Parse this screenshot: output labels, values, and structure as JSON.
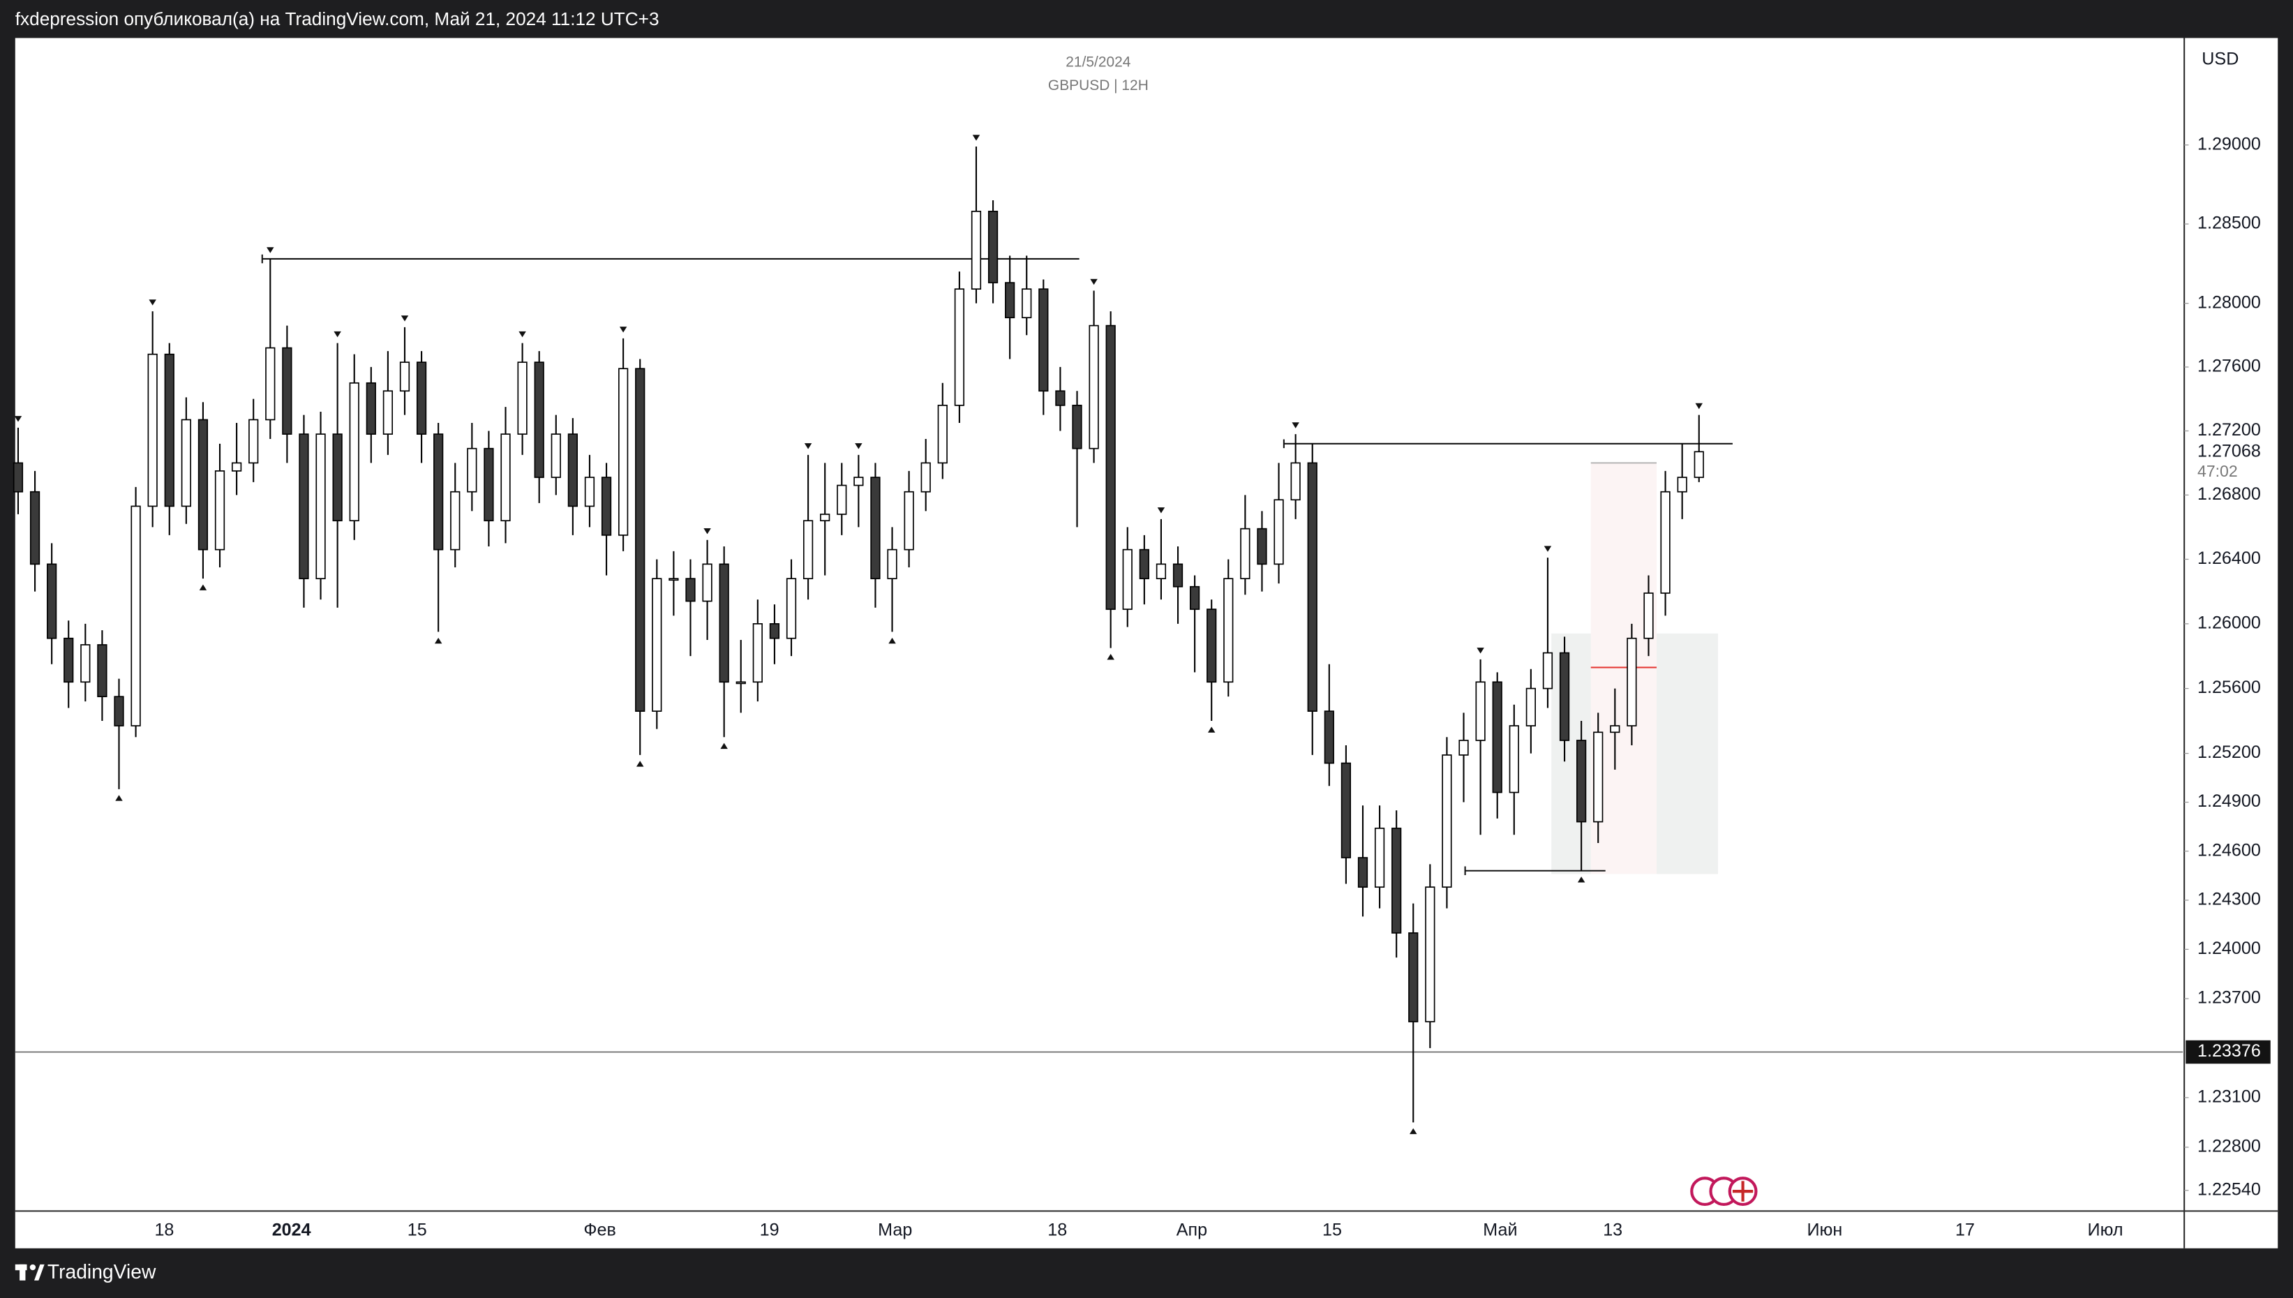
{
  "header": {
    "text": "fxdepression опубликовал(а) на TradingView.com, Май 21, 2024 11:12 UTC+3"
  },
  "footer": {
    "brand": "TradingView"
  },
  "chart_data": {
    "type": "candlestick",
    "title": "21/5/2024",
    "subtitle": "GBPUSD | 12H",
    "currency": "USD",
    "log_scale": true,
    "ylim": [
      1.2242,
      1.2968
    ],
    "yticks": [
      {
        "value": 1.29,
        "label": "1.29000"
      },
      {
        "value": 1.285,
        "label": "1.28500"
      },
      {
        "value": 1.28,
        "label": "1.28000"
      },
      {
        "value": 1.276,
        "label": "1.27600"
      },
      {
        "value": 1.272,
        "label": "1.27200"
      },
      {
        "value": 1.268,
        "label": "1.26800"
      },
      {
        "value": 1.264,
        "label": "1.26400"
      },
      {
        "value": 1.26,
        "label": "1.26000"
      },
      {
        "value": 1.256,
        "label": "1.25600"
      },
      {
        "value": 1.252,
        "label": "1.25200"
      },
      {
        "value": 1.249,
        "label": "1.24900"
      },
      {
        "value": 1.246,
        "label": "1.24600"
      },
      {
        "value": 1.243,
        "label": "1.24300"
      },
      {
        "value": 1.24,
        "label": "1.24000"
      },
      {
        "value": 1.237,
        "label": "1.23700"
      },
      {
        "value": 1.231,
        "label": "1.23100"
      },
      {
        "value": 1.228,
        "label": "1.22800"
      },
      {
        "value": 1.2254,
        "label": "1.22540"
      }
    ],
    "x_labels": [
      "18",
      "2024",
      "15",
      "Фев",
      "19",
      "Мар",
      "18",
      "Апр",
      "15",
      "Май",
      "13",
      "Июн",
      "17",
      "Июл"
    ],
    "up_color": "#ffffff",
    "down_color": "#3a3a3a",
    "wick_color": "#000000",
    "ohlc": [
      [
        1.27,
        1.2722,
        1.2668,
        1.2682
      ],
      [
        1.2682,
        1.2695,
        1.262,
        1.2637
      ],
      [
        1.2637,
        1.265,
        1.2575,
        1.2591
      ],
      [
        1.2591,
        1.2602,
        1.2548,
        1.2564
      ],
      [
        1.2564,
        1.26,
        1.2552,
        1.2587
      ],
      [
        1.2587,
        1.2596,
        1.254,
        1.2555
      ],
      [
        1.2555,
        1.2566,
        1.2498,
        1.2537
      ],
      [
        1.2537,
        1.2685,
        1.253,
        1.2673
      ],
      [
        1.2673,
        1.2795,
        1.266,
        1.2768
      ],
      [
        1.2768,
        1.2775,
        1.2655,
        1.2673
      ],
      [
        1.2673,
        1.2741,
        1.2662,
        1.2727
      ],
      [
        1.2727,
        1.2738,
        1.2628,
        1.2646
      ],
      [
        1.2646,
        1.2712,
        1.2635,
        1.2695
      ],
      [
        1.2695,
        1.2725,
        1.268,
        1.27
      ],
      [
        1.27,
        1.274,
        1.2688,
        1.2727
      ],
      [
        1.2727,
        1.2828,
        1.2715,
        1.2772
      ],
      [
        1.2772,
        1.2786,
        1.27,
        1.2718
      ],
      [
        1.2718,
        1.273,
        1.261,
        1.2628
      ],
      [
        1.2628,
        1.2732,
        1.2615,
        1.2718
      ],
      [
        1.2718,
        1.2775,
        1.261,
        1.2664
      ],
      [
        1.2664,
        1.2768,
        1.2652,
        1.275
      ],
      [
        1.275,
        1.276,
        1.27,
        1.2718
      ],
      [
        1.2718,
        1.277,
        1.2705,
        1.2745
      ],
      [
        1.2745,
        1.2785,
        1.273,
        1.2763
      ],
      [
        1.2763,
        1.277,
        1.27,
        1.2718
      ],
      [
        1.2718,
        1.2725,
        1.2595,
        1.2646
      ],
      [
        1.2646,
        1.27,
        1.2635,
        1.2682
      ],
      [
        1.2682,
        1.2725,
        1.267,
        1.2709
      ],
      [
        1.2709,
        1.272,
        1.2648,
        1.2664
      ],
      [
        1.2664,
        1.2735,
        1.265,
        1.2718
      ],
      [
        1.2718,
        1.2775,
        1.2705,
        1.2763
      ],
      [
        1.2763,
        1.277,
        1.2675,
        1.2691
      ],
      [
        1.2691,
        1.273,
        1.268,
        1.2718
      ],
      [
        1.2718,
        1.2728,
        1.2655,
        1.2673
      ],
      [
        1.2673,
        1.2705,
        1.266,
        1.2691
      ],
      [
        1.2691,
        1.27,
        1.263,
        1.2655
      ],
      [
        1.2655,
        1.2778,
        1.2645,
        1.2759
      ],
      [
        1.2759,
        1.2765,
        1.2519,
        1.2546
      ],
      [
        1.2546,
        1.264,
        1.2535,
        1.2628
      ],
      [
        1.2628,
        1.2645,
        1.2605,
        1.2628
      ],
      [
        1.2628,
        1.264,
        1.258,
        1.2614
      ],
      [
        1.2614,
        1.2652,
        1.259,
        1.2637
      ],
      [
        1.2637,
        1.2648,
        1.253,
        1.2564
      ],
      [
        1.2564,
        1.259,
        1.2545,
        1.2564
      ],
      [
        1.2564,
        1.2615,
        1.2552,
        1.26
      ],
      [
        1.26,
        1.2612,
        1.2575,
        1.2591
      ],
      [
        1.2591,
        1.264,
        1.258,
        1.2628
      ],
      [
        1.2628,
        1.2705,
        1.2615,
        1.2664
      ],
      [
        1.2664,
        1.27,
        1.263,
        1.2668
      ],
      [
        1.2668,
        1.27,
        1.2655,
        1.2686
      ],
      [
        1.2686,
        1.2705,
        1.266,
        1.2691
      ],
      [
        1.2691,
        1.27,
        1.261,
        1.2628
      ],
      [
        1.2628,
        1.266,
        1.2595,
        1.2646
      ],
      [
        1.2646,
        1.2695,
        1.2635,
        1.2682
      ],
      [
        1.2682,
        1.2715,
        1.267,
        1.27
      ],
      [
        1.27,
        1.275,
        1.269,
        1.2736
      ],
      [
        1.2736,
        1.282,
        1.2725,
        1.2809
      ],
      [
        1.2809,
        1.2899,
        1.28,
        1.2858
      ],
      [
        1.2858,
        1.2865,
        1.28,
        1.2813
      ],
      [
        1.2813,
        1.283,
        1.2765,
        1.2791
      ],
      [
        1.2791,
        1.283,
        1.278,
        1.2809
      ],
      [
        1.2809,
        1.2815,
        1.273,
        1.2745
      ],
      [
        1.2745,
        1.276,
        1.272,
        1.2736
      ],
      [
        1.2736,
        1.2745,
        1.266,
        1.2709
      ],
      [
        1.2709,
        1.2808,
        1.27,
        1.2786
      ],
      [
        1.2786,
        1.2795,
        1.2585,
        1.2609
      ],
      [
        1.2609,
        1.266,
        1.2598,
        1.2646
      ],
      [
        1.2646,
        1.2655,
        1.2612,
        1.2628
      ],
      [
        1.2628,
        1.2665,
        1.2615,
        1.2637
      ],
      [
        1.2637,
        1.2648,
        1.26,
        1.2623
      ],
      [
        1.2623,
        1.263,
        1.257,
        1.2609
      ],
      [
        1.2609,
        1.2615,
        1.254,
        1.2564
      ],
      [
        1.2564,
        1.264,
        1.2555,
        1.2628
      ],
      [
        1.2628,
        1.268,
        1.2618,
        1.2659
      ],
      [
        1.2659,
        1.267,
        1.262,
        1.2637
      ],
      [
        1.2637,
        1.27,
        1.2625,
        1.2677
      ],
      [
        1.2677,
        1.2718,
        1.2665,
        1.27
      ],
      [
        1.27,
        1.2712,
        1.2519,
        1.2546
      ],
      [
        1.2546,
        1.2575,
        1.25,
        1.2514
      ],
      [
        1.2514,
        1.2525,
        1.244,
        1.2456
      ],
      [
        1.2456,
        1.2488,
        1.242,
        1.2438
      ],
      [
        1.2438,
        1.2488,
        1.2425,
        1.2474
      ],
      [
        1.2474,
        1.2485,
        1.2395,
        1.241
      ],
      [
        1.241,
        1.2428,
        1.2295,
        1.2356
      ],
      [
        1.2356,
        1.2452,
        1.234,
        1.2438
      ],
      [
        1.2438,
        1.253,
        1.2425,
        1.2519
      ],
      [
        1.2519,
        1.2545,
        1.249,
        1.2528
      ],
      [
        1.2528,
        1.2578,
        1.247,
        1.2564
      ],
      [
        1.2564,
        1.257,
        1.248,
        1.2496
      ],
      [
        1.2496,
        1.255,
        1.247,
        1.2537
      ],
      [
        1.2537,
        1.2572,
        1.252,
        1.256
      ],
      [
        1.256,
        1.2641,
        1.2548,
        1.2582
      ],
      [
        1.2582,
        1.2592,
        1.2515,
        1.2528
      ],
      [
        1.2528,
        1.254,
        1.2448,
        1.2478
      ],
      [
        1.2478,
        1.2545,
        1.2465,
        1.2533
      ],
      [
        1.2533,
        1.256,
        1.251,
        1.2537
      ],
      [
        1.2537,
        1.26,
        1.2525,
        1.2591
      ],
      [
        1.2591,
        1.263,
        1.258,
        1.2619
      ],
      [
        1.2619,
        1.2695,
        1.2605,
        1.2682
      ],
      [
        1.2682,
        1.2712,
        1.2665,
        1.2691
      ],
      [
        1.2691,
        1.273,
        1.2688,
        1.2707
      ]
    ],
    "last_price": {
      "value": 1.27068,
      "label": "1.27068"
    },
    "countdown": "47:02",
    "price_line": {
      "value": 1.23376,
      "label": "1.23376"
    },
    "levels": [
      1.2828,
      1.2712,
      1.2448
    ],
    "zones": [
      {
        "top": 1.2594,
        "bottom": 1.2446,
        "color": "#eff1f0"
      },
      {
        "top": 1.27,
        "bottom": 1.2446,
        "color": "#fcf4f4"
      }
    ],
    "mid_line": 1.2573
  }
}
